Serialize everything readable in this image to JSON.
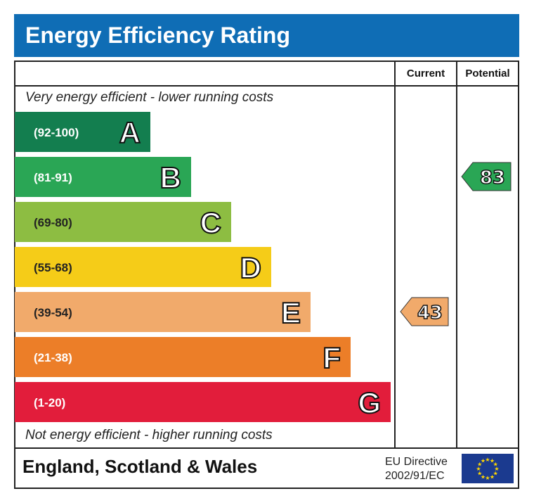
{
  "title": "Energy Efficiency Rating",
  "columns": {
    "current": "Current",
    "potential": "Potential"
  },
  "top_caption": "Very energy efficient - lower running costs",
  "bottom_caption": "Not energy efficient - higher running costs",
  "footer": {
    "region": "England, Scotland & Wales",
    "directive_line1": "EU Directive",
    "directive_line2": "2002/91/EC",
    "flag_icon": "eu-flag-icon"
  },
  "chart_data": {
    "type": "bar",
    "categories": [
      "A",
      "B",
      "C",
      "D",
      "E",
      "F",
      "G"
    ],
    "bands": [
      {
        "letter": "A",
        "range": "(92-100)",
        "color": "#137e4f"
      },
      {
        "letter": "B",
        "range": "(81-91)",
        "color": "#2aa655"
      },
      {
        "letter": "C",
        "range": "(69-80)",
        "color": "#8dbd42"
      },
      {
        "letter": "D",
        "range": "(55-68)",
        "color": "#f5cc18"
      },
      {
        "letter": "E",
        "range": "(39-54)",
        "color": "#f1aa6b"
      },
      {
        "letter": "F",
        "range": "(21-38)",
        "color": "#ec7e28"
      },
      {
        "letter": "G",
        "range": "(1-20)",
        "color": "#e21d3b"
      }
    ],
    "current": {
      "value": 43,
      "band": "E",
      "color": "#f1aa6b"
    },
    "potential": {
      "value": 83,
      "band": "B",
      "color": "#2aa655"
    }
  }
}
